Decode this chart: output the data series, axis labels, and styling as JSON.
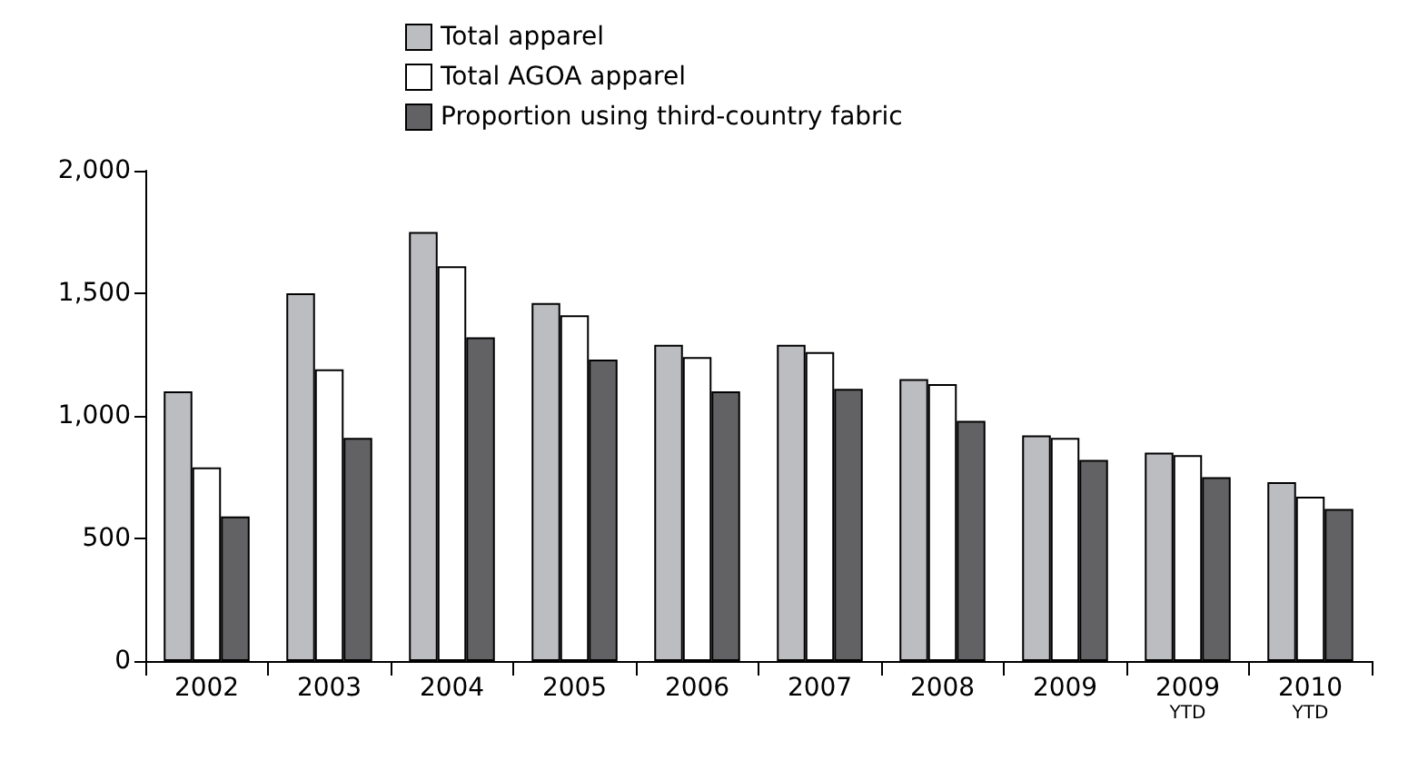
{
  "chart_data": {
    "type": "bar",
    "categories": [
      "2002",
      "2003",
      "2004",
      "2005",
      "2006",
      "2007",
      "2008",
      "2009",
      "2009\nYTD",
      "2010\nYTD"
    ],
    "series": [
      {
        "name": "Total apparel",
        "color": "#bcbdc0",
        "values": [
          1100,
          1500,
          1750,
          1460,
          1290,
          1290,
          1150,
          920,
          850,
          730
        ]
      },
      {
        "name": "Total AGOA apparel",
        "color": "#ffffff",
        "values": [
          790,
          1190,
          1610,
          1410,
          1240,
          1260,
          1130,
          910,
          840,
          670
        ]
      },
      {
        "name": "Proportion using third-country fabric",
        "color": "#626264",
        "values": [
          590,
          910,
          1320,
          1230,
          1100,
          1110,
          980,
          820,
          750,
          620
        ]
      }
    ],
    "ylim": [
      0,
      2000
    ],
    "yticks": [
      0,
      500,
      {
        "value": 1000,
        "label": "1,000"
      },
      {
        "value": 1500,
        "label": "1,500"
      },
      {
        "value": 2000,
        "label": "2,000"
      }
    ],
    "grid": false,
    "legend": "top"
  }
}
